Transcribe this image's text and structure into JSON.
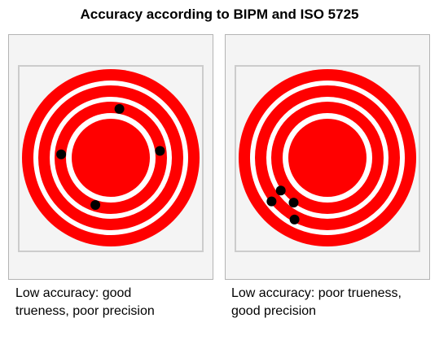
{
  "title": "Accuracy according to BIPM and ISO 5725",
  "colors": {
    "ring": "#ff0000",
    "gap": "#ffffff",
    "shot": "#000000",
    "panel_background": "#f4f4f4",
    "panel_border": "#b4b4b4"
  },
  "targets": [
    {
      "caption_line1": "Low accuracy: good",
      "caption_line2": "trueness, poor precision",
      "shots": [
        {
          "angle_deg": -80,
          "radius_ring_units": 3.05
        },
        {
          "angle_deg": -8,
          "radius_ring_units": 3.05
        },
        {
          "angle_deg": 108,
          "radius_ring_units": 3.05
        },
        {
          "angle_deg": 184,
          "radius_ring_units": 3.05
        }
      ]
    },
    {
      "caption_line1": "Low accuracy: poor trueness,",
      "caption_line2": "good precision",
      "shots": [
        {
          "angle_deg": 127,
          "radius_ring_units": 3.45
        },
        {
          "angle_deg": 145,
          "radius_ring_units": 3.5
        },
        {
          "angle_deg": 118,
          "radius_ring_units": 4.3
        },
        {
          "angle_deg": 142,
          "radius_ring_units": 4.35
        }
      ]
    }
  ]
}
